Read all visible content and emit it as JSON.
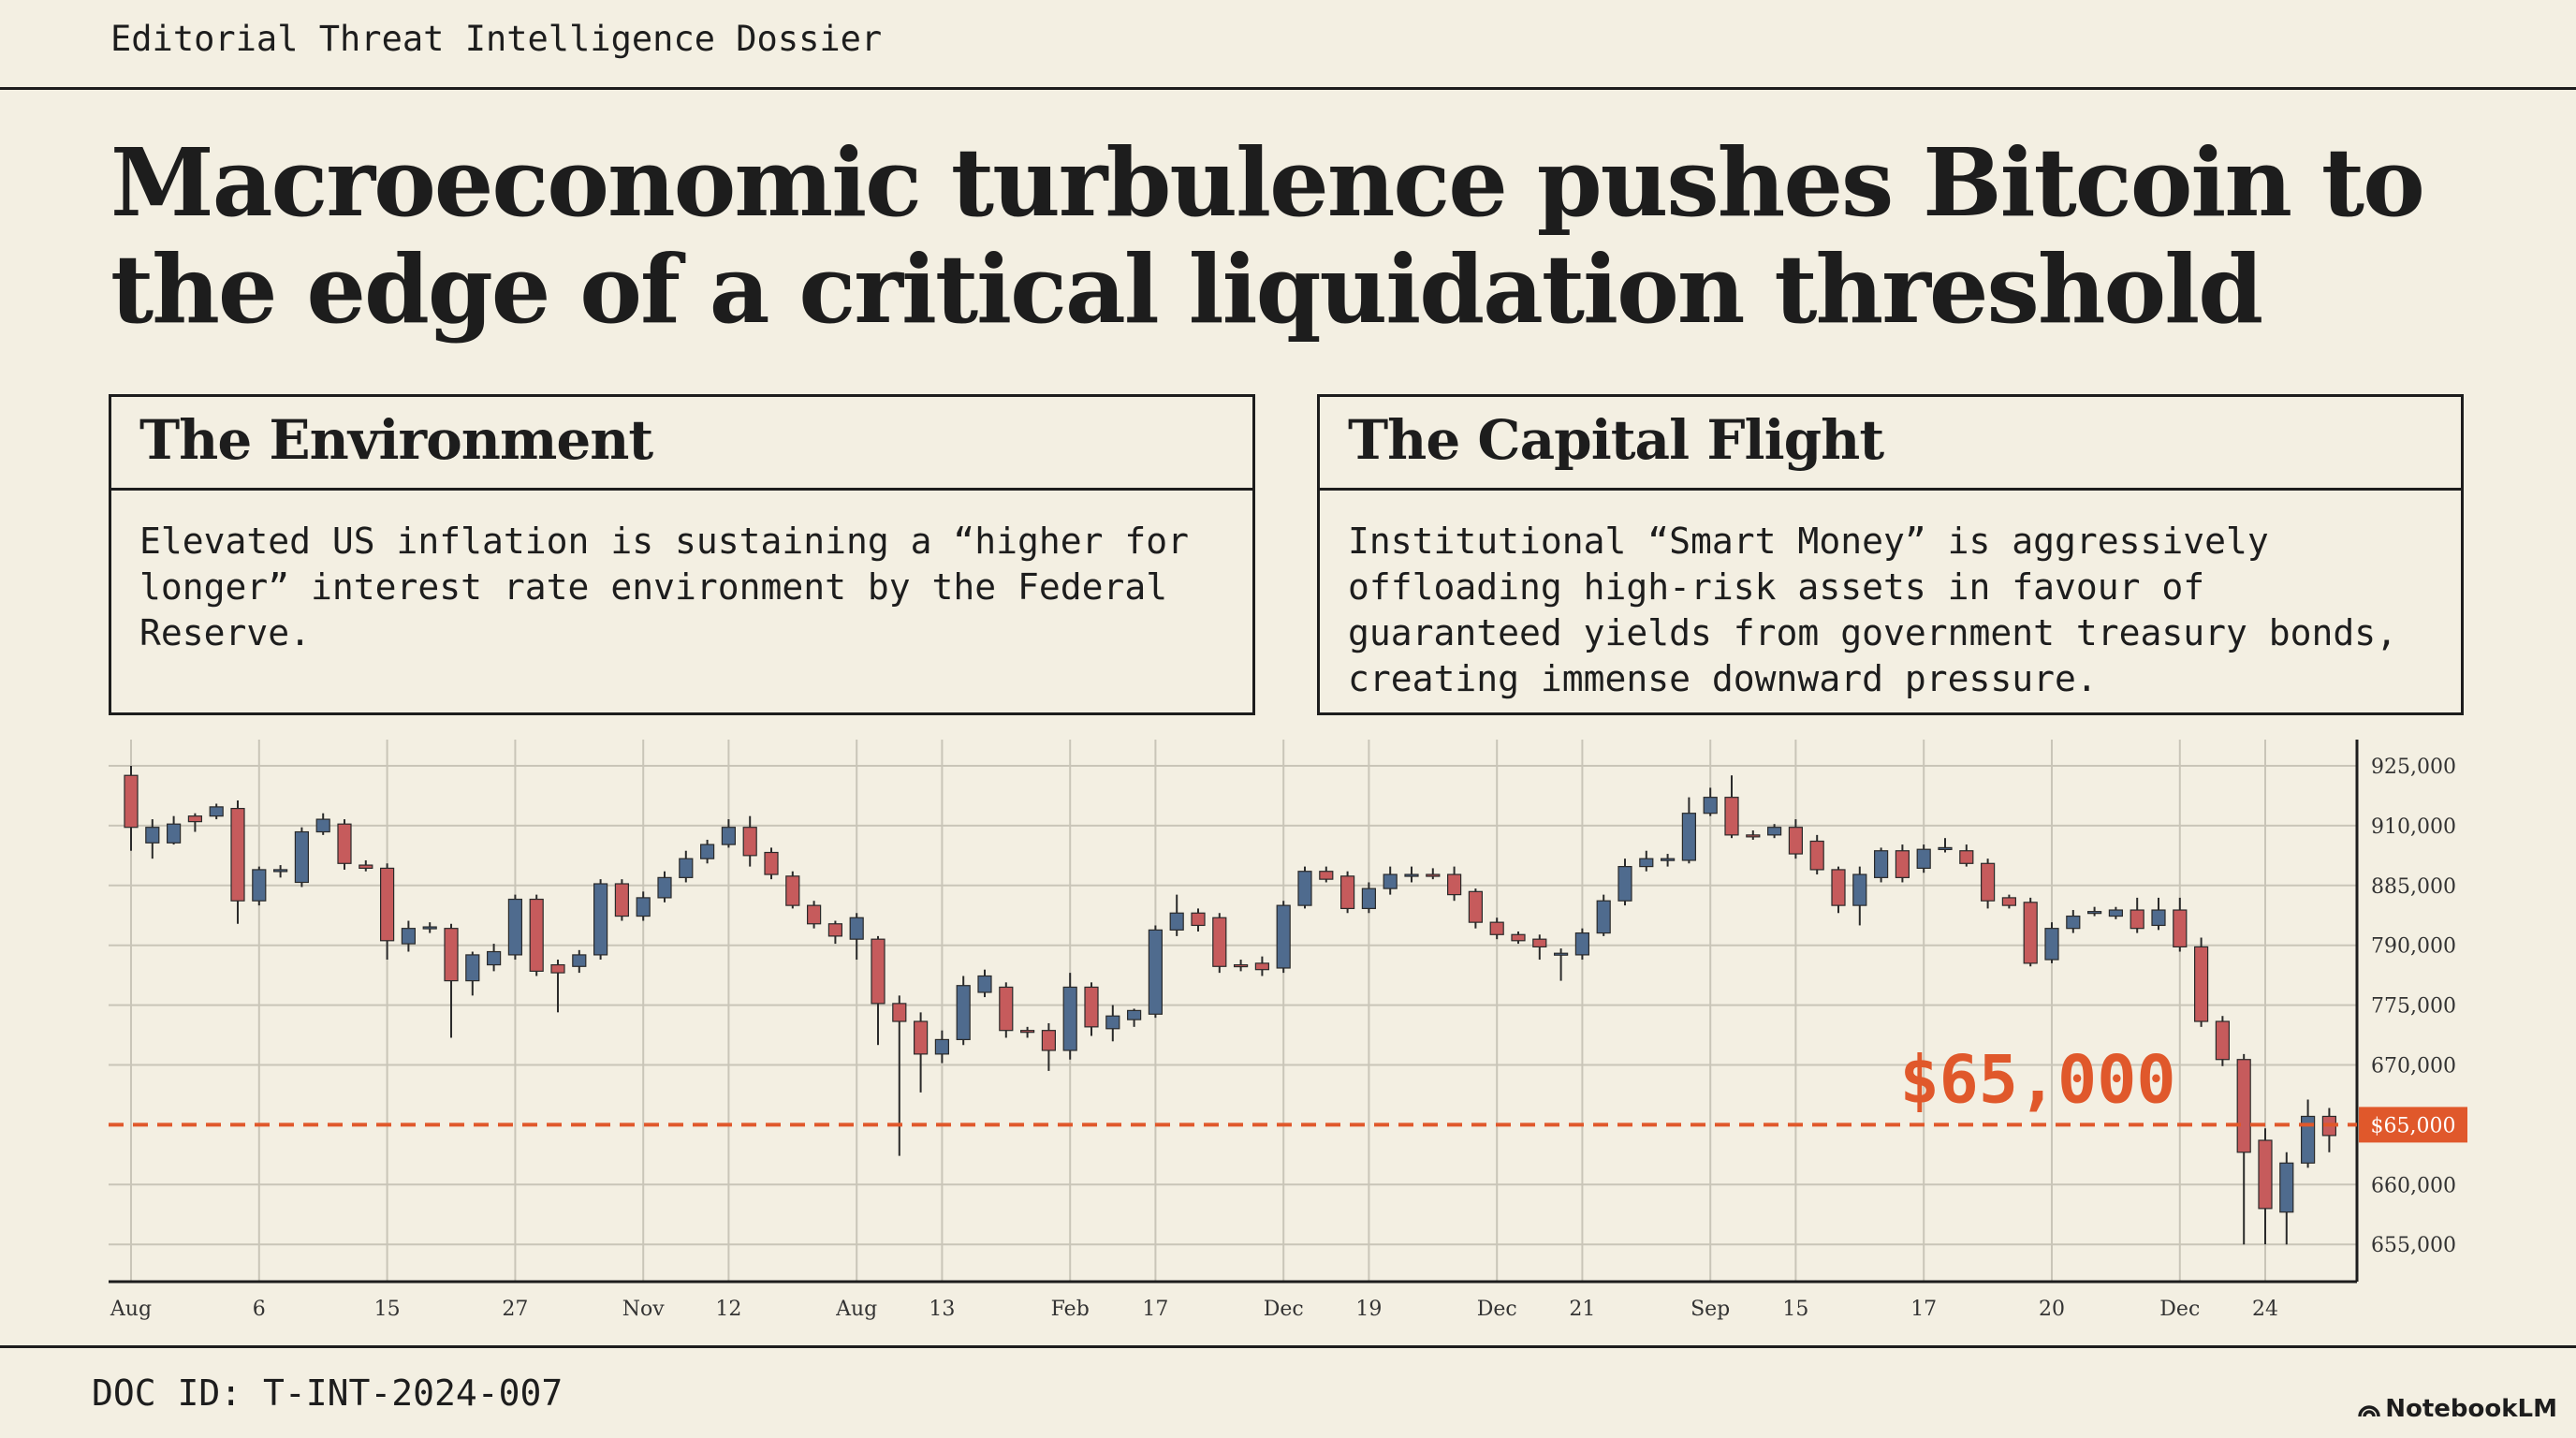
{
  "header": {
    "label": "Editorial Threat Intelligence Dossier"
  },
  "title": "Macroeconomic turbulence pushes Bitcoin to the edge of a critical liquidation threshold",
  "cards": [
    {
      "title": "The Environment",
      "body": "Elevated US inflation is sustaining a “higher for longer” interest rate environment by the Federal Reserve."
    },
    {
      "title": "The Capital Flight",
      "body": "Institutional “Smart Money” is aggressively offloading high-risk assets in favour of guaranteed yields from government treasury bonds, creating immense downward pressure."
    }
  ],
  "footer": {
    "doc_id": "DOC ID: T-INT-2024-007",
    "watermark": "NotebookLM"
  },
  "chart_data": {
    "type": "candlestick",
    "categories": [
      "Aug",
      null,
      null,
      null,
      null,
      null,
      "6",
      null,
      null,
      null,
      null,
      null,
      "15",
      null,
      null,
      null,
      null,
      null,
      "27",
      null,
      null,
      null,
      null,
      null,
      "Nov",
      null,
      null,
      null,
      "12",
      null,
      null,
      null,
      null,
      null,
      "Aug",
      null,
      null,
      null,
      "13",
      null,
      null,
      null,
      null,
      null,
      "Feb",
      null,
      null,
      null,
      "17",
      null,
      null,
      null,
      null,
      null,
      "Dec",
      null,
      null,
      null,
      "19",
      null,
      null,
      null,
      null,
      null,
      "Dec",
      null,
      null,
      null,
      "21",
      null,
      null,
      null,
      null,
      null,
      "Sep",
      null,
      null,
      null,
      "15",
      null,
      null,
      null,
      null,
      null,
      "17",
      null,
      null,
      null,
      null,
      null,
      "20",
      null,
      null,
      null,
      null,
      null,
      "Dec",
      null,
      null,
      null,
      "24",
      null,
      null,
      null
    ],
    "open": [
      922600,
      902800,
      902800,
      912400,
      912400,
      914300,
      860600,
      890900,
      886300,
      907400,
      910400,
      893500,
      892200,
      792400,
      816800,
      816800,
      781100,
      785100,
      787600,
      863100,
      785100,
      784700,
      787600,
      885700,
      836300,
      865500,
      888300,
      896200,
      902100,
      909300,
      898800,
      888900,
      853300,
      824100,
      799700,
      799700,
      775400,
      746400,
      689100,
      714500,
      778200,
      779500,
      730500,
      730500,
      695500,
      779500,
      733600,
      749500,
      759100,
      814300,
      841200,
      833800,
      785100,
      785500,
      784300,
      853300,
      890900,
      888900,
      848400,
      880100,
      888900,
      889600,
      889600,
      875300,
      826500,
      807000,
      799700,
      787600,
      787600,
      809500,
      860600,
      892900,
      895500,
      895500,
      913100,
      917100,
      906100,
      906100,
      909300,
      903500,
      891600,
      853300,
      888300,
      899500,
      892200,
      900100,
      899500,
      894200,
      865500,
      858200,
      786400,
      816800,
      841200,
      836300,
      846000,
      821600,
      846000,
      789600,
      746400,
      679500,
      663700,
      657700,
      661800,
      665700
    ],
    "high": [
      925000,
      911600,
      912400,
      913100,
      915500,
      916300,
      892900,
      893500,
      909300,
      913100,
      911600,
      895500,
      894200,
      828900,
      826500,
      824100,
      788400,
      792400,
      870400,
      870400,
      786400,
      788800,
      887600,
      887600,
      875300,
      890900,
      899500,
      904100,
      911600,
      912400,
      900800,
      890900,
      860600,
      828900,
      841200,
      804600,
      777400,
      762300,
      730500,
      782300,
      783900,
      780700,
      736800,
      743200,
      783100,
      780700,
      775000,
      768700,
      821600,
      870400,
      848400,
      841200,
      786400,
      787200,
      860600,
      892900,
      892900,
      890900,
      886300,
      892900,
      892900,
      892200,
      892900,
      880100,
      833800,
      811900,
      807000,
      789200,
      816800,
      870400,
      896200,
      899500,
      898200,
      917100,
      919500,
      922600,
      908000,
      910400,
      911600,
      906100,
      892900,
      892900,
      900800,
      902100,
      902100,
      904800,
      902100,
      896200,
      870400,
      865500,
      826500,
      846000,
      851000,
      850900,
      865500,
      865500,
      865500,
      802200,
      755900,
      689100,
      664700,
      662700,
      667100,
      666400
    ],
    "low": [
      899500,
      896200,
      902100,
      907400,
      911600,
      824100,
      853300,
      888300,
      882500,
      906100,
      891600,
      890900,
      786400,
      788400,
      809500,
      717700,
      777400,
      783500,
      786400,
      782300,
      762300,
      783100,
      786400,
      828900,
      828900,
      858200,
      886300,
      894200,
      900800,
      892900,
      887600,
      848400,
      816800,
      792400,
      786400,
      705000,
      662400,
      667700,
      673200,
      705000,
      777000,
      717700,
      717700,
      669500,
      679500,
      720900,
      711400,
      736800,
      752700,
      804600,
      811900,
      783100,
      783500,
      782300,
      783100,
      848400,
      886300,
      841200,
      841200,
      870400,
      886300,
      887600,
      860600,
      816800,
      799700,
      792400,
      786400,
      781100,
      786400,
      804600,
      853300,
      890900,
      892900,
      894200,
      912400,
      904800,
      904100,
      904800,
      896200,
      889600,
      841200,
      821600,
      886300,
      886300,
      890300,
      898800,
      892900,
      848400,
      848400,
      784700,
      785500,
      809500,
      836300,
      831400,
      809500,
      814300,
      788400,
      736800,
      669900,
      655000,
      655000,
      655000,
      661400,
      662700
    ],
    "close": [
      909300,
      909300,
      910400,
      911000,
      914700,
      860600,
      891600,
      891600,
      907400,
      911600,
      894200,
      892200,
      797300,
      816800,
      819200,
      781100,
      787600,
      788400,
      863100,
      783500,
      783100,
      787600,
      885700,
      836300,
      865500,
      888300,
      896200,
      902100,
      909300,
      897500,
      889600,
      853300,
      824100,
      804600,
      833800,
      775400,
      746400,
      689100,
      714500,
      779900,
      782300,
      730500,
      727300,
      695500,
      779500,
      736800,
      755900,
      765500,
      814300,
      841200,
      821600,
      784700,
      784700,
      783900,
      853300,
      890900,
      887600,
      848400,
      880100,
      889600,
      889600,
      888900,
      870400,
      826500,
      807000,
      797300,
      789600,
      788000,
      809500,
      860600,
      892900,
      896200,
      896200,
      913100,
      917100,
      906100,
      905500,
      909300,
      898200,
      891600,
      853300,
      889600,
      899500,
      888300,
      900100,
      900800,
      894200,
      860600,
      853300,
      785500,
      816800,
      836300,
      843600,
      846000,
      816800,
      846000,
      789600,
      746400,
      679500,
      662700,
      658000,
      661800,
      665700,
      664100
    ],
    "up_color": "#4f6b8e",
    "down_color": "#c65b5c",
    "yticks": [
      {
        "value": 925000,
        "label": "925,000"
      },
      {
        "value": 910000,
        "label": "910,000"
      },
      {
        "value": 885000,
        "label": "885,000"
      },
      {
        "value": 790000,
        "label": "790,000"
      },
      {
        "value": 775000,
        "label": "775,000"
      },
      {
        "value": 670000,
        "label": "670,000"
      },
      {
        "value": 660000,
        "label": "660,000"
      },
      {
        "value": 655000,
        "label": "655,000"
      }
    ],
    "grid": true,
    "threshold": {
      "value": 65000,
      "label": "$65,000",
      "color": "#e0582b"
    }
  }
}
